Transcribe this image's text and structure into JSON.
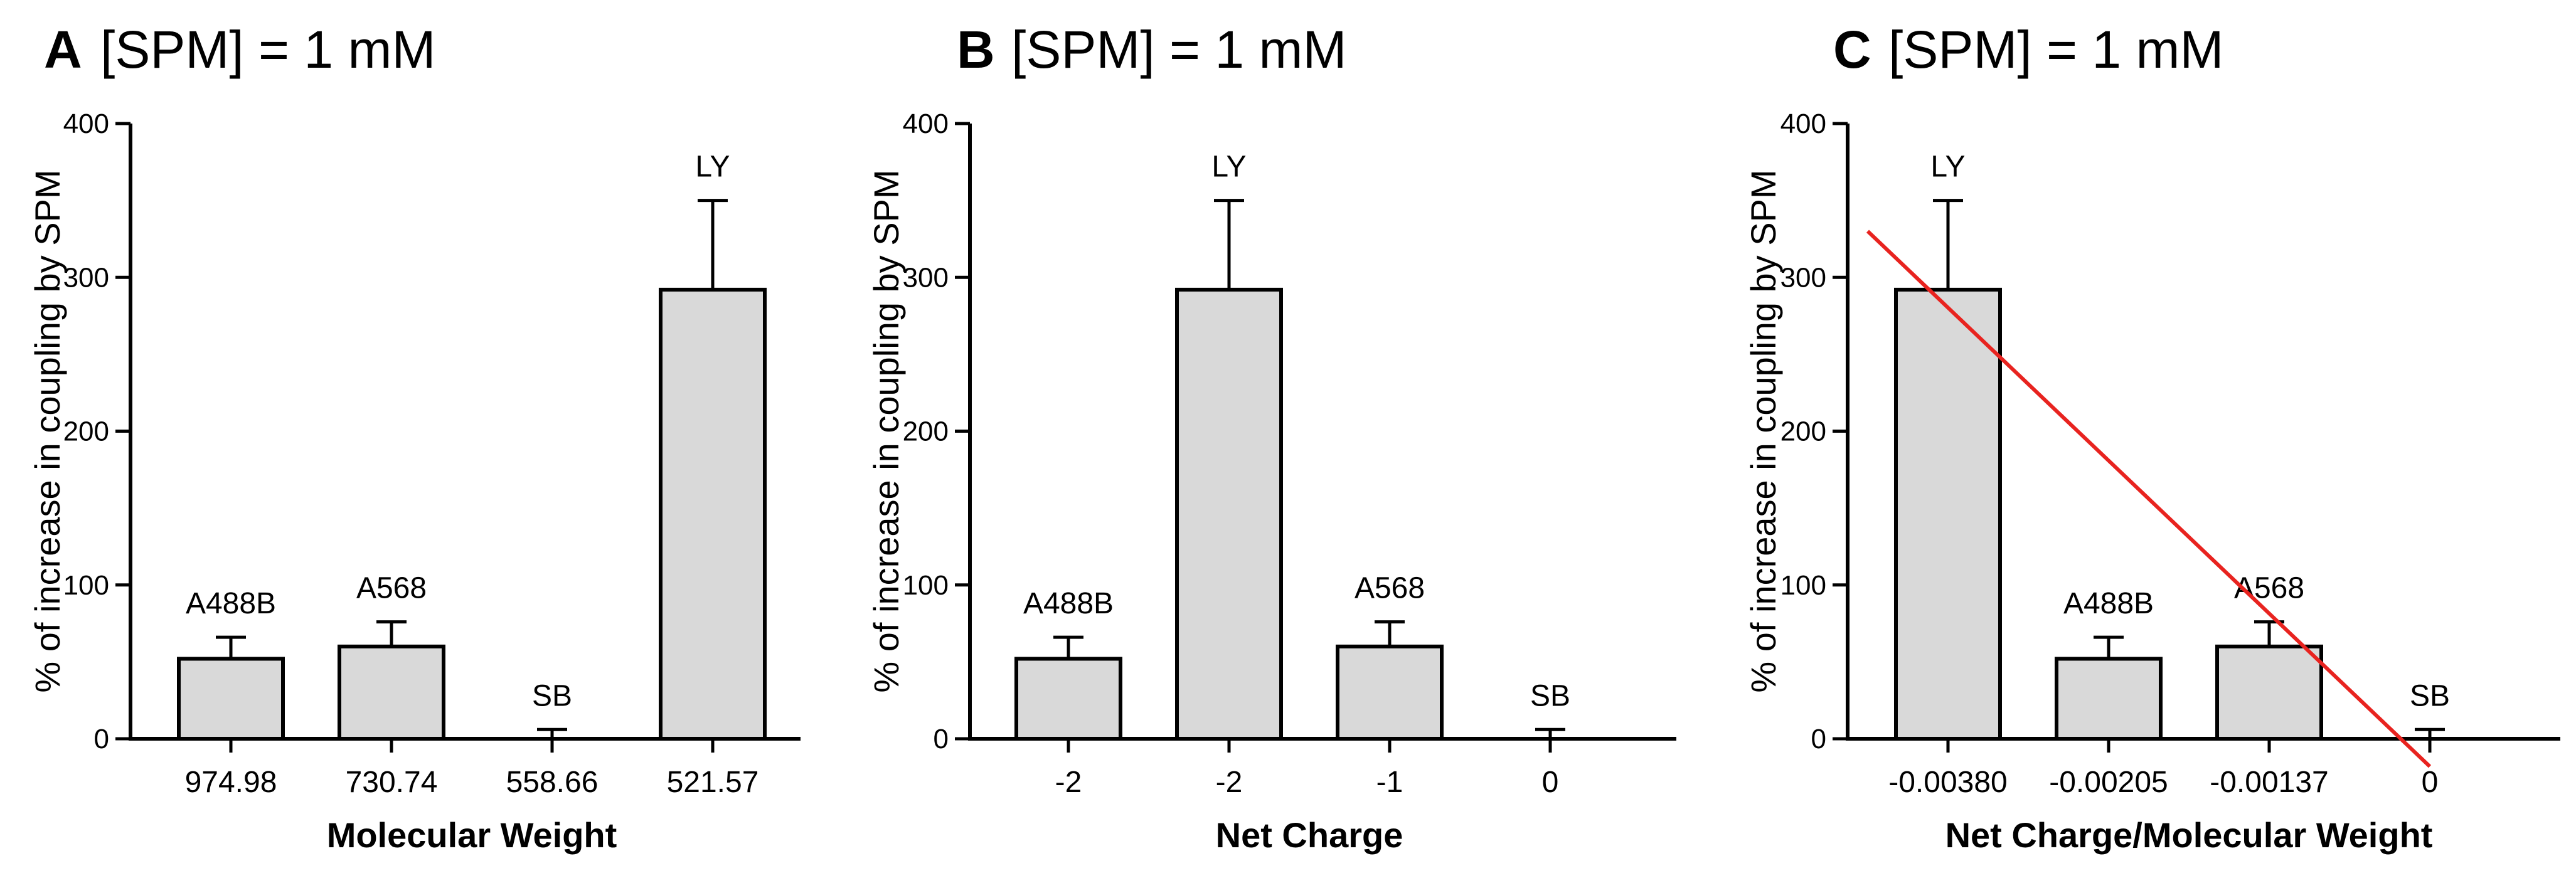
{
  "figure": {
    "panels": [
      {
        "letter": "A",
        "title": "[SPM] = 1 mM",
        "xlabel": "Molecular Weight",
        "ylabel": "% of increase in coupling by SPM"
      },
      {
        "letter": "B",
        "title": "[SPM] = 1 mM",
        "xlabel": "Net Charge",
        "ylabel": "% of increase in coupling by SPM"
      },
      {
        "letter": "C",
        "title": "[SPM] = 1 mM",
        "xlabel": "Net Charge/Molecular Weight",
        "ylabel": "% of increase in coupling by SPM"
      }
    ]
  },
  "chart_data": [
    {
      "type": "bar",
      "title": "[SPM] = 1 mM",
      "xlabel": "Molecular Weight",
      "ylabel": "% of increase in coupling by SPM",
      "categories": [
        "974.98",
        "730.74",
        "558.66",
        "521.57"
      ],
      "bar_labels": [
        "A488B",
        "A568",
        "SB",
        "LY"
      ],
      "values": [
        52,
        60,
        0,
        292
      ],
      "error_upper": [
        14,
        16,
        6,
        58
      ],
      "ylim": [
        0,
        400
      ],
      "yticks": [
        0,
        100,
        200,
        300,
        400
      ],
      "bar_color": "#d9d9d9",
      "grid": false
    },
    {
      "type": "bar",
      "title": "[SPM] = 1 mM",
      "xlabel": "Net Charge",
      "ylabel": "% of increase in coupling by SPM",
      "categories": [
        "-2",
        "-2",
        "-1",
        "0"
      ],
      "bar_labels": [
        "A488B",
        "LY",
        "A568",
        "SB"
      ],
      "values": [
        52,
        292,
        60,
        0
      ],
      "error_upper": [
        14,
        58,
        16,
        6
      ],
      "ylim": [
        0,
        400
      ],
      "yticks": [
        0,
        100,
        200,
        300,
        400
      ],
      "bar_color": "#d9d9d9",
      "grid": false
    },
    {
      "type": "bar",
      "title": "[SPM] = 1 mM",
      "xlabel": "Net Charge/Molecular Weight",
      "ylabel": "% of increase in coupling by SPM",
      "categories": [
        "-0.00380",
        "-0.00205",
        "-0.00137",
        "0"
      ],
      "bar_labels": [
        "LY",
        "A488B",
        "A568",
        "SB"
      ],
      "values": [
        292,
        52,
        60,
        0
      ],
      "error_upper": [
        58,
        14,
        16,
        6
      ],
      "ylim": [
        0,
        400
      ],
      "yticks": [
        0,
        100,
        200,
        300,
        400
      ],
      "bar_color": "#d9d9d9",
      "grid": false,
      "trend_line": {
        "color": "#e8231f",
        "start": {
          "category_index": -0.5,
          "y": 330
        },
        "end": {
          "category_index": 3.0,
          "y": -18
        }
      }
    }
  ]
}
